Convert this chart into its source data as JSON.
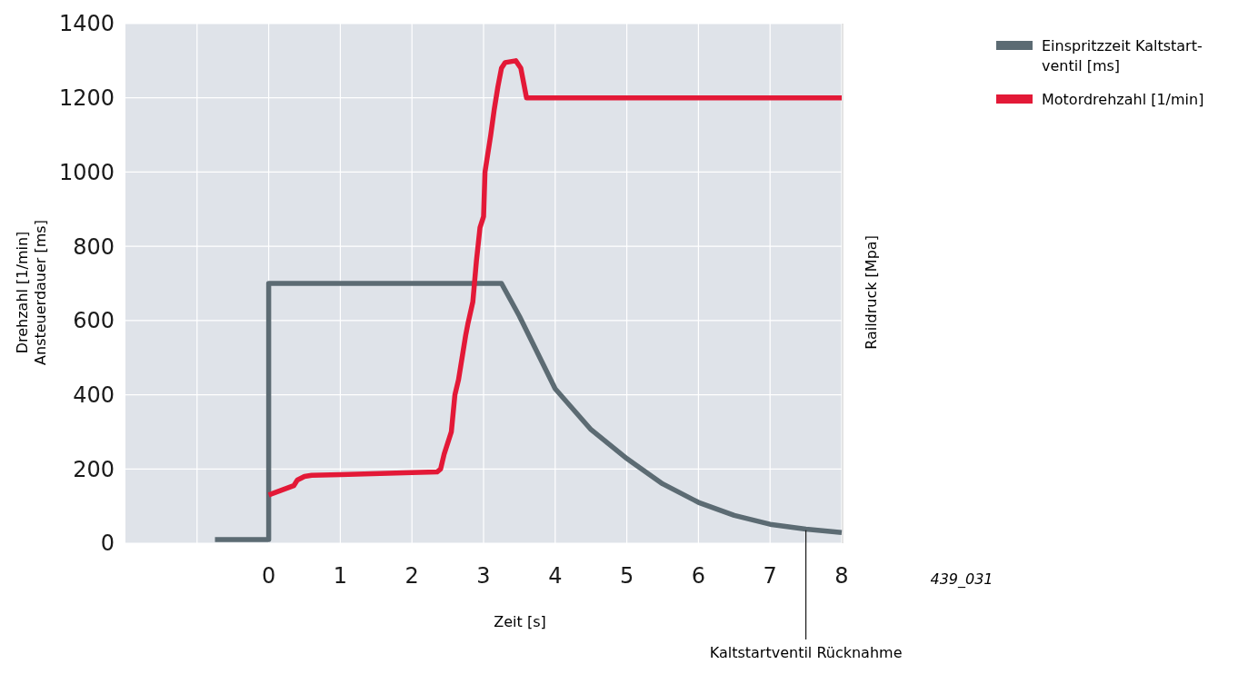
{
  "chart_data": {
    "type": "line",
    "xlabel": "Zeit [s]",
    "ylabel": "Drehzahl [1/min]\nAnsteuerdauer [ms]",
    "y2label": "Raildruck [Mpa]",
    "xlim": [
      -2,
      8
    ],
    "xticks": [
      {
        "value": -1,
        "label": null
      },
      0,
      1,
      2,
      3,
      4,
      5,
      6,
      7,
      8
    ],
    "ylim": [
      0,
      1400
    ],
    "yticks": [
      0,
      200,
      400,
      600,
      800,
      1000,
      1200,
      1400
    ],
    "grid": true,
    "legend": "top right",
    "line_style": "solid",
    "marker": "none",
    "series": [
      {
        "name": "Einspritzzeit Kaltstart-ventil [ms]",
        "color": "#5c6b73",
        "x": [
          -0.75,
          0,
          0,
          3.25,
          3.5,
          4,
          4.5,
          5,
          5.5,
          6,
          6.5,
          7,
          7.5,
          8
        ],
        "values": [
          10,
          10,
          700,
          700,
          612,
          416,
          306,
          228,
          160,
          110,
          75,
          51,
          38,
          29
        ]
      },
      {
        "name": "Motordrehzahl [1/min]",
        "color": "#e31937",
        "x": [
          0,
          0.35,
          0.4,
          0.5,
          0.6,
          1,
          2,
          2.35,
          2.4,
          2.45,
          2.55,
          2.6,
          2.65,
          2.7,
          2.75,
          2.78,
          2.85,
          2.9,
          2.95,
          3,
          3.02,
          3.1,
          3.15,
          3.2,
          3.25,
          3.3,
          3.45,
          3.52,
          3.6,
          8
        ],
        "values": [
          130,
          155,
          170,
          180,
          183,
          185,
          190,
          192,
          200,
          240,
          300,
          400,
          440,
          500,
          560,
          590,
          650,
          760,
          850,
          880,
          1000,
          1100,
          1170,
          1230,
          1280,
          1295,
          1300,
          1280,
          1200,
          1200
        ]
      }
    ],
    "annotations": [
      {
        "text": "Kaltstartventil Rücknahme",
        "x": 7.5,
        "y": 35
      },
      "439_031"
    ]
  }
}
